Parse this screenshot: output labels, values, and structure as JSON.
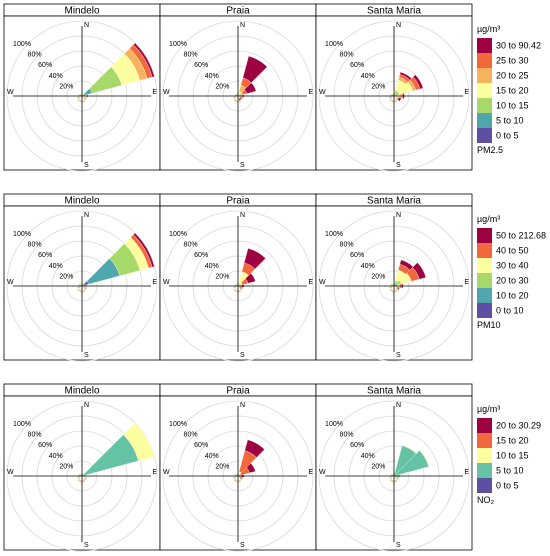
{
  "colors": {
    "c1": "#5e4fa2",
    "c2": "#4fa6ac",
    "c3": "#a6d96a",
    "c4": "#fdfea0",
    "c5": "#f6b25d",
    "c6": "#f0683b",
    "c7": "#9e0142",
    "no2_low": "#5e4fa2",
    "no2_mid": "#66c2a5",
    "no2_hi": "#fdfea0",
    "grid": "#d9d9d9",
    "frame": "#000000"
  },
  "compass": {
    "n": "N",
    "e": "E",
    "s": "S",
    "w": "W"
  },
  "radial_labels": [
    "100%",
    "80%",
    "60%",
    "40%",
    "20%"
  ],
  "stations": [
    "Mindelo",
    "Praia",
    "Santa Maria"
  ],
  "chart_data": [
    {
      "type": "windrose",
      "pollutant_label": "PM2.5",
      "legend_title": "µg/m³",
      "bins": [
        "0 to 5",
        "5 to 10",
        "10 to 15",
        "15 to 20",
        "20 to 25",
        "25 to 30",
        "30 to 90.42"
      ],
      "bin_colors": [
        "c1",
        "c2",
        "c3",
        "c4",
        "c5",
        "c6",
        "c7"
      ],
      "panels": [
        {
          "station": "Mindelo",
          "sectors": [
            {
              "dir": 60,
              "cum": [
                0,
                14,
                55,
                80,
                90,
                97,
                100
              ]
            },
            {
              "dir": 90,
              "cum": [
                0,
                0,
                3,
                5,
                6,
                7,
                8
              ]
            },
            {
              "dir": 120,
              "cum": [
                0,
                0,
                2,
                3,
                4,
                4,
                4
              ]
            },
            {
              "dir": 150,
              "cum": [
                0,
                0,
                1,
                2,
                2,
                3,
                3
              ]
            }
          ]
        },
        {
          "station": "Praia",
          "sectors": [
            {
              "dir": 30,
              "cum": [
                0,
                0,
                2,
                6,
                15,
                25,
                55
              ]
            },
            {
              "dir": 60,
              "cum": [
                0,
                0,
                2,
                4,
                7,
                12,
                25
              ]
            },
            {
              "dir": 90,
              "cum": [
                0,
                0,
                1,
                2,
                4,
                6,
                8
              ]
            },
            {
              "dir": 120,
              "cum": [
                0,
                0,
                1,
                2,
                3,
                5,
                7
              ]
            },
            {
              "dir": 150,
              "cum": [
                0,
                0,
                1,
                2,
                3,
                4,
                6
              ]
            }
          ]
        },
        {
          "station": "Santa Maria",
          "sectors": [
            {
              "dir": 30,
              "cum": [
                0,
                0,
                8,
                22,
                26,
                30,
                33
              ]
            },
            {
              "dir": 60,
              "cum": [
                0,
                0,
                8,
                26,
                30,
                36,
                40
              ]
            },
            {
              "dir": 90,
              "cum": [
                0,
                0,
                4,
                8,
                10,
                12,
                14
              ]
            },
            {
              "dir": 120,
              "cum": [
                0,
                0,
                2,
                4,
                5,
                7,
                10
              ]
            }
          ]
        }
      ]
    },
    {
      "type": "windrose",
      "pollutant_label": "PM10",
      "legend_title": "µg/m³",
      "bins": [
        "0 to 10",
        "10 to 20",
        "20 to 30",
        "30 to 40",
        "40 to 50",
        "50 to 212.68"
      ],
      "bin_colors": [
        "c1",
        "c2",
        "c3",
        "c4",
        "c6",
        "c7"
      ],
      "panels": [
        {
          "station": "Mindelo",
          "sectors": [
            {
              "dir": 60,
              "cum": [
                9,
                52,
                80,
                92,
                97,
                100
              ]
            },
            {
              "dir": 90,
              "cum": [
                0,
                2,
                3,
                4,
                5,
                6
              ]
            },
            {
              "dir": 120,
              "cum": [
                0,
                1,
                2,
                3,
                4,
                4
              ]
            }
          ]
        },
        {
          "station": "Praia",
          "sectors": [
            {
              "dir": 30,
              "cum": [
                0,
                0,
                4,
                20,
                32,
                52
              ]
            },
            {
              "dir": 60,
              "cum": [
                0,
                0,
                2,
                6,
                14,
                24
              ]
            },
            {
              "dir": 90,
              "cum": [
                0,
                0,
                1,
                3,
                5,
                8
              ]
            },
            {
              "dir": 120,
              "cum": [
                0,
                0,
                1,
                2,
                4,
                6
              ]
            }
          ]
        },
        {
          "station": "Santa Maria",
          "sectors": [
            {
              "dir": 30,
              "cum": [
                0,
                3,
                8,
                22,
                30,
                36
              ]
            },
            {
              "dir": 60,
              "cum": [
                0,
                5,
                10,
                24,
                35,
                44
              ]
            },
            {
              "dir": 90,
              "cum": [
                0,
                2,
                4,
                8,
                10,
                12
              ]
            },
            {
              "dir": 120,
              "cum": [
                0,
                1,
                2,
                4,
                6,
                8
              ]
            }
          ]
        }
      ]
    },
    {
      "type": "windrose",
      "pollutant_label": "NO₂",
      "legend_title": "µg/m³",
      "bins": [
        "0 to 5",
        "5 to 10",
        "10 to 15",
        "15 to 20",
        "20 to 30.29"
      ],
      "bin_colors": [
        "no2_low",
        "no2_mid",
        "no2_hi",
        "c6",
        "c7"
      ],
      "panels": [
        {
          "station": "Mindelo",
          "sectors": [
            {
              "dir": 60,
              "cum": [
                0,
                78,
                100,
                100,
                100
              ]
            },
            {
              "dir": 90,
              "cum": [
                0,
                3,
                4,
                4,
                4
              ]
            },
            {
              "dir": 120,
              "cum": [
                0,
                2,
                2,
                2,
                2
              ]
            }
          ]
        },
        {
          "station": "Praia",
          "sectors": [
            {
              "dir": 30,
              "cum": [
                0,
                0,
                6,
                35,
                50
              ]
            },
            {
              "dir": 60,
              "cum": [
                0,
                0,
                4,
                16,
                24
              ]
            },
            {
              "dir": 90,
              "cum": [
                0,
                0,
                2,
                5,
                8
              ]
            },
            {
              "dir": 120,
              "cum": [
                0,
                0,
                1,
                4,
                6
              ]
            }
          ]
        },
        {
          "station": "Santa Maria",
          "sectors": [
            {
              "dir": 30,
              "cum": [
                0,
                42,
                43,
                43,
                43
              ]
            },
            {
              "dir": 60,
              "cum": [
                0,
                48,
                49,
                49,
                49
              ]
            },
            {
              "dir": 90,
              "cum": [
                0,
                8,
                8,
                8,
                8
              ]
            },
            {
              "dir": 120,
              "cum": [
                0,
                4,
                4,
                4,
                4
              ]
            }
          ]
        }
      ]
    }
  ]
}
